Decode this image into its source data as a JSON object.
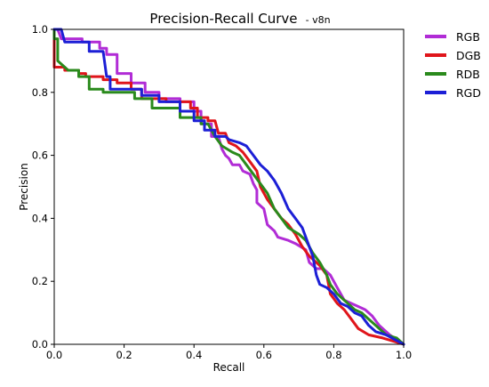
{
  "chart_data": {
    "type": "line",
    "title": "Precision-Recall Curve",
    "subtitle": "- v8n",
    "xlabel": "Recall",
    "ylabel": "Precision",
    "xlim": [
      0.0,
      1.0
    ],
    "ylim": [
      0.0,
      1.0
    ],
    "xticks": [
      "0.0",
      "0.2",
      "0.4",
      "0.6",
      "0.8",
      "1.0"
    ],
    "yticks": [
      "0.0",
      "0.2",
      "0.4",
      "0.6",
      "0.8",
      "1.0"
    ],
    "grid": false,
    "legend_position": "outside-right",
    "series": [
      {
        "name": "RGB",
        "color": "#b12cd6",
        "points": [
          [
            0.0,
            1.0
          ],
          [
            0.01,
            1.0
          ],
          [
            0.02,
            0.97
          ],
          [
            0.08,
            0.97
          ],
          [
            0.08,
            0.96
          ],
          [
            0.13,
            0.96
          ],
          [
            0.13,
            0.94
          ],
          [
            0.15,
            0.94
          ],
          [
            0.15,
            0.92
          ],
          [
            0.18,
            0.92
          ],
          [
            0.18,
            0.86
          ],
          [
            0.22,
            0.86
          ],
          [
            0.22,
            0.83
          ],
          [
            0.26,
            0.83
          ],
          [
            0.26,
            0.8
          ],
          [
            0.3,
            0.8
          ],
          [
            0.3,
            0.78
          ],
          [
            0.36,
            0.78
          ],
          [
            0.36,
            0.77
          ],
          [
            0.4,
            0.77
          ],
          [
            0.4,
            0.74
          ],
          [
            0.42,
            0.74
          ],
          [
            0.42,
            0.7
          ],
          [
            0.45,
            0.7
          ],
          [
            0.45,
            0.66
          ],
          [
            0.47,
            0.66
          ],
          [
            0.48,
            0.62
          ],
          [
            0.49,
            0.6
          ],
          [
            0.5,
            0.59
          ],
          [
            0.51,
            0.57
          ],
          [
            0.53,
            0.57
          ],
          [
            0.54,
            0.55
          ],
          [
            0.56,
            0.54
          ],
          [
            0.57,
            0.51
          ],
          [
            0.58,
            0.49
          ],
          [
            0.58,
            0.45
          ],
          [
            0.6,
            0.43
          ],
          [
            0.61,
            0.38
          ],
          [
            0.63,
            0.36
          ],
          [
            0.64,
            0.34
          ],
          [
            0.67,
            0.33
          ],
          [
            0.69,
            0.32
          ],
          [
            0.72,
            0.3
          ],
          [
            0.73,
            0.26
          ],
          [
            0.75,
            0.24
          ],
          [
            0.77,
            0.24
          ],
          [
            0.79,
            0.22
          ],
          [
            0.8,
            0.2
          ],
          [
            0.81,
            0.18
          ],
          [
            0.83,
            0.14
          ],
          [
            0.85,
            0.13
          ],
          [
            0.87,
            0.12
          ],
          [
            0.89,
            0.11
          ],
          [
            0.91,
            0.09
          ],
          [
            0.93,
            0.06
          ],
          [
            0.96,
            0.03
          ],
          [
            1.0,
            0.0
          ]
        ]
      },
      {
        "name": "DGB",
        "color": "#e0151b",
        "points": [
          [
            0.0,
            1.0
          ],
          [
            0.0,
            0.88
          ],
          [
            0.03,
            0.88
          ],
          [
            0.03,
            0.87
          ],
          [
            0.07,
            0.87
          ],
          [
            0.07,
            0.86
          ],
          [
            0.09,
            0.86
          ],
          [
            0.09,
            0.85
          ],
          [
            0.14,
            0.85
          ],
          [
            0.14,
            0.84
          ],
          [
            0.18,
            0.84
          ],
          [
            0.18,
            0.83
          ],
          [
            0.22,
            0.83
          ],
          [
            0.22,
            0.81
          ],
          [
            0.25,
            0.81
          ],
          [
            0.25,
            0.78
          ],
          [
            0.32,
            0.78
          ],
          [
            0.32,
            0.77
          ],
          [
            0.39,
            0.77
          ],
          [
            0.39,
            0.75
          ],
          [
            0.41,
            0.75
          ],
          [
            0.41,
            0.72
          ],
          [
            0.44,
            0.72
          ],
          [
            0.44,
            0.71
          ],
          [
            0.46,
            0.71
          ],
          [
            0.47,
            0.67
          ],
          [
            0.49,
            0.67
          ],
          [
            0.5,
            0.64
          ],
          [
            0.52,
            0.63
          ],
          [
            0.54,
            0.61
          ],
          [
            0.56,
            0.58
          ],
          [
            0.58,
            0.55
          ],
          [
            0.59,
            0.5
          ],
          [
            0.61,
            0.46
          ],
          [
            0.63,
            0.43
          ],
          [
            0.65,
            0.4
          ],
          [
            0.67,
            0.38
          ],
          [
            0.69,
            0.35
          ],
          [
            0.71,
            0.31
          ],
          [
            0.73,
            0.28
          ],
          [
            0.76,
            0.25
          ],
          [
            0.78,
            0.22
          ],
          [
            0.79,
            0.16
          ],
          [
            0.81,
            0.13
          ],
          [
            0.83,
            0.11
          ],
          [
            0.85,
            0.08
          ],
          [
            0.87,
            0.05
          ],
          [
            0.9,
            0.03
          ],
          [
            0.94,
            0.02
          ],
          [
            1.0,
            0.0
          ]
        ]
      },
      {
        "name": "RDB",
        "color": "#2a8a1c",
        "points": [
          [
            0.0,
            1.0
          ],
          [
            0.0,
            0.97
          ],
          [
            0.01,
            0.97
          ],
          [
            0.01,
            0.9
          ],
          [
            0.04,
            0.87
          ],
          [
            0.07,
            0.87
          ],
          [
            0.07,
            0.85
          ],
          [
            0.1,
            0.85
          ],
          [
            0.1,
            0.81
          ],
          [
            0.14,
            0.81
          ],
          [
            0.14,
            0.8
          ],
          [
            0.23,
            0.8
          ],
          [
            0.23,
            0.78
          ],
          [
            0.28,
            0.78
          ],
          [
            0.28,
            0.75
          ],
          [
            0.36,
            0.75
          ],
          [
            0.36,
            0.72
          ],
          [
            0.42,
            0.72
          ],
          [
            0.42,
            0.7
          ],
          [
            0.44,
            0.7
          ],
          [
            0.46,
            0.66
          ],
          [
            0.48,
            0.63
          ],
          [
            0.51,
            0.61
          ],
          [
            0.53,
            0.6
          ],
          [
            0.55,
            0.57
          ],
          [
            0.57,
            0.54
          ],
          [
            0.59,
            0.51
          ],
          [
            0.61,
            0.48
          ],
          [
            0.63,
            0.43
          ],
          [
            0.65,
            0.4
          ],
          [
            0.67,
            0.37
          ],
          [
            0.7,
            0.35
          ],
          [
            0.72,
            0.33
          ],
          [
            0.74,
            0.29
          ],
          [
            0.76,
            0.26
          ],
          [
            0.78,
            0.22
          ],
          [
            0.79,
            0.19
          ],
          [
            0.81,
            0.16
          ],
          [
            0.83,
            0.14
          ],
          [
            0.86,
            0.11
          ],
          [
            0.88,
            0.1
          ],
          [
            0.9,
            0.08
          ],
          [
            0.92,
            0.06
          ],
          [
            0.95,
            0.03
          ],
          [
            0.98,
            0.02
          ],
          [
            1.0,
            0.0
          ]
        ]
      },
      {
        "name": "RGD",
        "color": "#1c1fd6",
        "points": [
          [
            0.0,
            1.0
          ],
          [
            0.02,
            1.0
          ],
          [
            0.03,
            0.96
          ],
          [
            0.1,
            0.96
          ],
          [
            0.1,
            0.93
          ],
          [
            0.14,
            0.93
          ],
          [
            0.15,
            0.85
          ],
          [
            0.16,
            0.85
          ],
          [
            0.16,
            0.81
          ],
          [
            0.25,
            0.81
          ],
          [
            0.25,
            0.79
          ],
          [
            0.3,
            0.79
          ],
          [
            0.3,
            0.77
          ],
          [
            0.36,
            0.77
          ],
          [
            0.36,
            0.74
          ],
          [
            0.4,
            0.74
          ],
          [
            0.4,
            0.71
          ],
          [
            0.43,
            0.71
          ],
          [
            0.43,
            0.68
          ],
          [
            0.46,
            0.68
          ],
          [
            0.46,
            0.66
          ],
          [
            0.49,
            0.66
          ],
          [
            0.5,
            0.65
          ],
          [
            0.53,
            0.64
          ],
          [
            0.55,
            0.63
          ],
          [
            0.57,
            0.6
          ],
          [
            0.59,
            0.57
          ],
          [
            0.61,
            0.55
          ],
          [
            0.63,
            0.52
          ],
          [
            0.65,
            0.48
          ],
          [
            0.67,
            0.43
          ],
          [
            0.69,
            0.4
          ],
          [
            0.71,
            0.37
          ],
          [
            0.73,
            0.31
          ],
          [
            0.74,
            0.28
          ],
          [
            0.75,
            0.22
          ],
          [
            0.76,
            0.19
          ],
          [
            0.78,
            0.18
          ],
          [
            0.8,
            0.16
          ],
          [
            0.82,
            0.13
          ],
          [
            0.84,
            0.12
          ],
          [
            0.86,
            0.1
          ],
          [
            0.88,
            0.09
          ],
          [
            0.9,
            0.06
          ],
          [
            0.92,
            0.04
          ],
          [
            0.95,
            0.03
          ],
          [
            1.0,
            0.0
          ]
        ]
      }
    ]
  }
}
